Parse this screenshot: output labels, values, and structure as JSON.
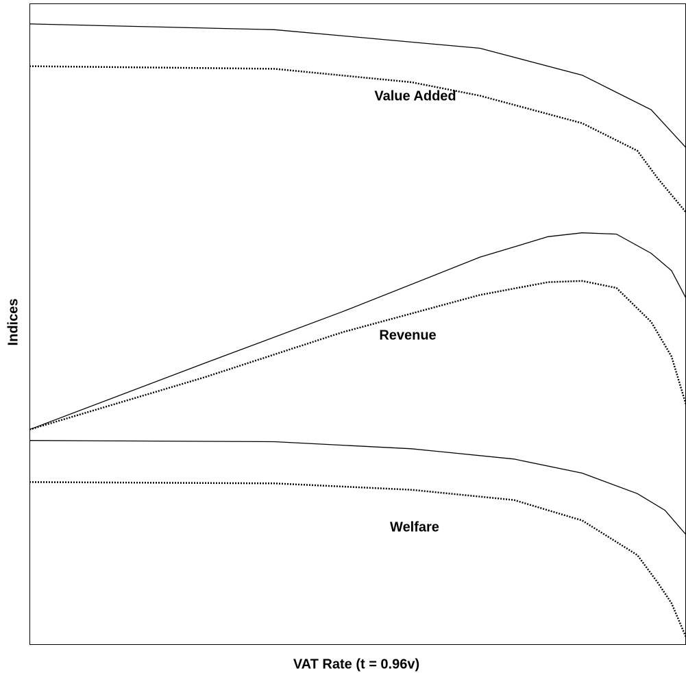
{
  "chart_data": {
    "type": "line",
    "xlabel": "VAT Rate (t = 0.96v)",
    "ylabel": "Indices",
    "xlim": [
      0,
      1
    ],
    "ylim": [
      0,
      100
    ],
    "annotations": [
      "Value Added",
      "Revenue",
      "Welfare"
    ],
    "series": [
      {
        "name": "Value Added",
        "color": "#000000",
        "line_style": "solid",
        "x": [
          0,
          0.373,
          0.686,
          0.842,
          0.947,
          1.0
        ],
        "values": [
          96.8,
          95.9,
          93.0,
          88.8,
          83.4,
          77.5
        ]
      },
      {
        "name": "Value Added",
        "color": "#000000",
        "line_style": "dotted",
        "x": [
          0,
          0.373,
          0.582,
          0.686,
          0.842,
          0.926,
          0.957,
          1.0
        ],
        "values": [
          90.2,
          89.8,
          87.7,
          85.6,
          81.3,
          77.0,
          72.7,
          67.4
        ]
      },
      {
        "name": "Revenue",
        "color": "#000000",
        "line_style": "solid",
        "x": [
          0,
          0.268,
          0.477,
          0.686,
          0.79,
          0.842,
          0.894,
          0.947,
          0.978,
          1.0
        ],
        "values": [
          33.5,
          43.9,
          51.9,
          60.4,
          63.6,
          64.2,
          64.0,
          61.0,
          58.3,
          54.0
        ]
      },
      {
        "name": "Revenue",
        "color": "#000000",
        "line_style": "dotted",
        "x": [
          0,
          0.268,
          0.477,
          0.686,
          0.79,
          0.842,
          0.894,
          0.947,
          0.978,
          1.0
        ],
        "values": [
          33.5,
          41.7,
          48.7,
          54.5,
          56.5,
          56.7,
          55.6,
          50.3,
          44.9,
          37.4
        ]
      },
      {
        "name": "Welfare",
        "color": "#000000",
        "line_style": "solid",
        "x": [
          0,
          0.373,
          0.582,
          0.738,
          0.842,
          0.926,
          0.968,
          1.0
        ],
        "values": [
          31.8,
          31.6,
          30.5,
          28.9,
          26.7,
          23.5,
          20.9,
          17.1
        ]
      },
      {
        "name": "Welfare",
        "color": "#000000",
        "line_style": "dotted",
        "x": [
          0,
          0.373,
          0.582,
          0.738,
          0.842,
          0.926,
          0.957,
          0.978,
          1.0
        ],
        "values": [
          25.3,
          25.1,
          24.1,
          22.5,
          19.3,
          13.9,
          9.6,
          6.4,
          1.1
        ]
      }
    ]
  }
}
